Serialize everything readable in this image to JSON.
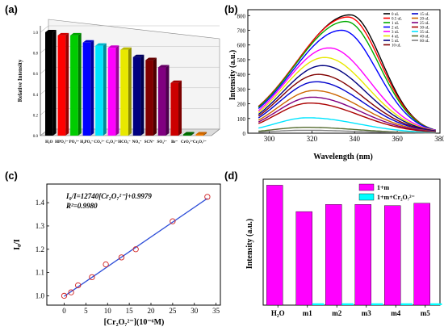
{
  "chart_data": [
    {
      "panel_label": "(a)",
      "type": "bar",
      "ylabel": "Relative Intensity",
      "ylim": [
        0,
        1.0
      ],
      "yticks": [
        "0.0",
        "0.2",
        "0.4",
        "0.6",
        "0.8",
        "1.0"
      ],
      "categories": [
        "H₂O",
        "HPO₄²⁻",
        "PO₄³⁻",
        "H₂PO₄⁻",
        "CO₃²⁻",
        "C₂O₄²⁻",
        "HCO₃⁻",
        "NO₃⁻",
        "SCN⁻",
        "SO₄²⁻",
        "Br⁻",
        "CrO₄²⁻",
        "Cr₂O₇²⁻"
      ],
      "values": [
        1.0,
        0.97,
        0.97,
        0.9,
        0.87,
        0.85,
        0.83,
        0.76,
        0.73,
        0.66,
        0.51,
        0.01,
        0.01
      ],
      "colors": [
        "#000000",
        "#ff0000",
        "#00cc00",
        "#0000ff",
        "#00e5ff",
        "#ff00ff",
        "#e8e800",
        "#000080",
        "#800000",
        "#800080",
        "#cc0000",
        "#008000",
        "#ff8000"
      ]
    },
    {
      "panel_label": "(b)",
      "type": "line",
      "xlabel": "Wavelength (nm)",
      "ylabel": "Intensity (a.u.)",
      "xlim": [
        290,
        380
      ],
      "ylim": [
        0,
        800
      ],
      "xticks": [
        "300",
        "320",
        "340",
        "360",
        "380"
      ],
      "yticks": [
        "0",
        "100",
        "200",
        "300",
        "400",
        "500",
        "600",
        "700",
        "800"
      ],
      "series": [
        {
          "name": "0 uL",
          "color": "#000000",
          "peak_x": 338,
          "peak_y": 805
        },
        {
          "name": "0.5 uL",
          "color": "#ff0000",
          "peak_x": 337,
          "peak_y": 790
        },
        {
          "name": "1 uL",
          "color": "#00aa00",
          "peak_x": 336,
          "peak_y": 760
        },
        {
          "name": "2 uL",
          "color": "#0000ff",
          "peak_x": 334,
          "peak_y": 700
        },
        {
          "name": "3 uL",
          "color": "#ff00ff",
          "peak_x": 328,
          "peak_y": 580
        },
        {
          "name": "4 uL",
          "color": "#e8e800",
          "peak_x": 326,
          "peak_y": 515
        },
        {
          "name": "5 uL",
          "color": "#000080",
          "peak_x": 325,
          "peak_y": 460
        },
        {
          "name": "10 uL",
          "color": "#800000",
          "peak_x": 323,
          "peak_y": 400
        },
        {
          "name": "15 uL",
          "color": "#0000cc",
          "peak_x": 322,
          "peak_y": 350
        },
        {
          "name": "20 uL",
          "color": "#cc6600",
          "peak_x": 321,
          "peak_y": 290
        },
        {
          "name": "25 uL",
          "color": "#800080",
          "peak_x": 320,
          "peak_y": 245
        },
        {
          "name": "30 uL",
          "color": "#aa0000",
          "peak_x": 319,
          "peak_y": 205
        },
        {
          "name": "35 uL",
          "color": "#00e5ff",
          "peak_x": 318,
          "peak_y": 105
        },
        {
          "name": "40 uL",
          "color": "#556b2f",
          "peak_x": 317,
          "peak_y": 40
        },
        {
          "name": "60 uL",
          "color": "#808080",
          "peak_x": 316,
          "peak_y": 20
        }
      ]
    },
    {
      "panel_label": "(c)",
      "type": "scatter",
      "xlabel": "[Cr₂O₇²⁻](10⁻⁶M)",
      "ylabel": "I₀/I",
      "xlim": [
        -4,
        36
      ],
      "ylim": [
        0.96,
        1.48
      ],
      "xticks": [
        0,
        5,
        10,
        15,
        20,
        25,
        30,
        35
      ],
      "yticks": [
        "1.0",
        "1.1",
        "1.2",
        "1.3",
        "1.4"
      ],
      "x": [
        0,
        1.6,
        3.2,
        6.4,
        9.6,
        13.2,
        16.5,
        25,
        33
      ],
      "y": [
        1.0,
        1.015,
        1.045,
        1.08,
        1.135,
        1.165,
        1.2,
        1.32,
        1.425
      ],
      "fit": {
        "slope": 0.01274,
        "intercept": 0.9979
      },
      "equation": "I₀/I=12740[Cr₂O₇²⁻]+0.9979",
      "r2": "R²=0.9980"
    },
    {
      "panel_label": "(d)",
      "type": "bar",
      "ylabel": "Intensity (a.u.)",
      "categories": [
        "H₂O",
        "m1",
        "m2",
        "m3",
        "m4",
        "m5"
      ],
      "ylim": [
        0,
        1.05
      ],
      "series": [
        {
          "name": "1+m",
          "color": "#ff00ff",
          "values": [
            1.0,
            0.78,
            0.84,
            0.84,
            0.83,
            0.85
          ]
        },
        {
          "name": "1+m+Cr₂O₇²⁻",
          "color": "#00ffff",
          "values": [
            0.0,
            0.015,
            0.015,
            0.015,
            0.015,
            0.015
          ]
        }
      ]
    }
  ]
}
